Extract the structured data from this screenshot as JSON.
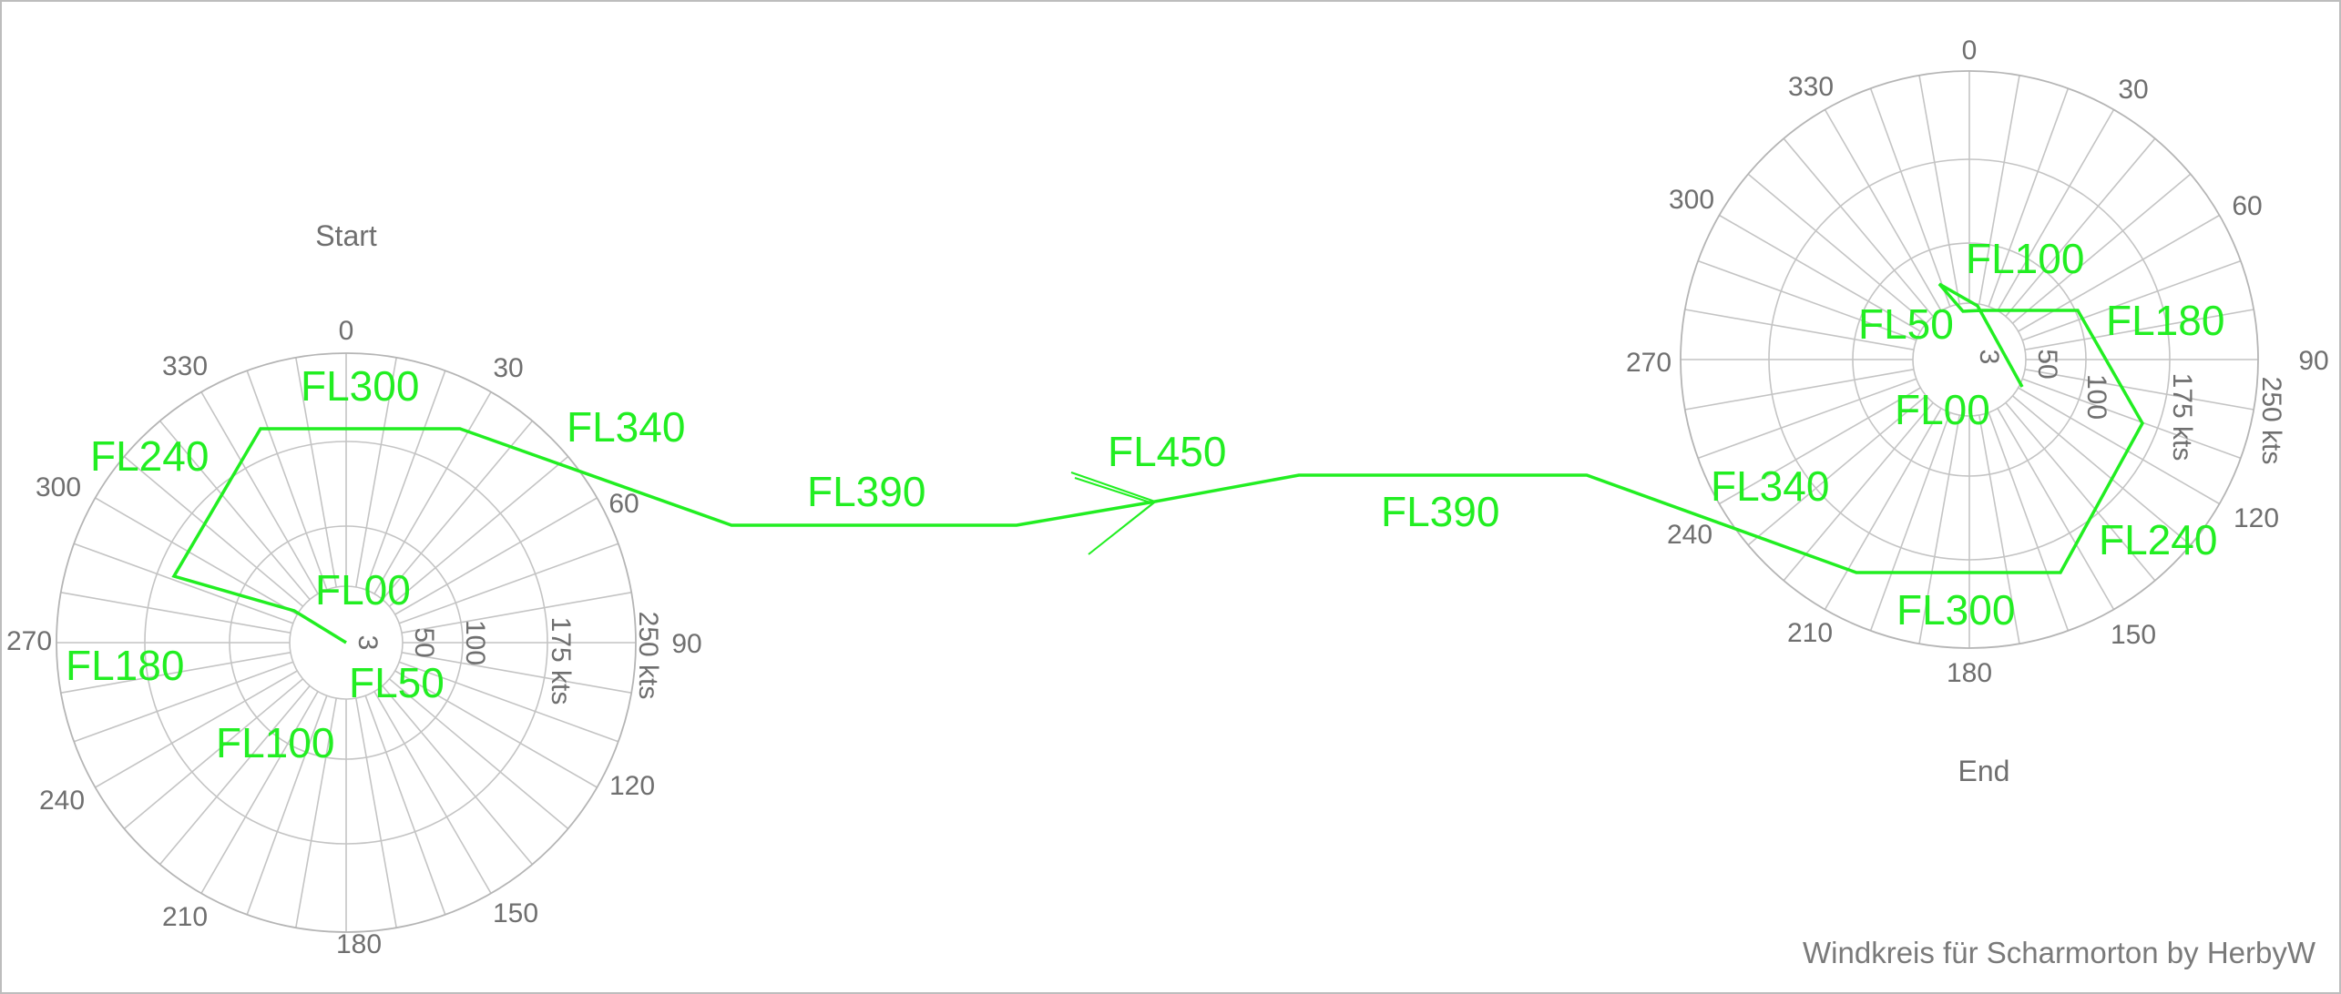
{
  "start_title": "Start",
  "end_title": "End",
  "credit": "Windkreis für Scharmorton by HerbyW",
  "angle_labels": [
    "0",
    "30",
    "60",
    "90",
    "120",
    "150",
    "180",
    "210",
    "240",
    "270",
    "300",
    "330"
  ],
  "speed_labels": [
    "3",
    "50",
    "100",
    "175 kts",
    "250 kts"
  ],
  "route_labels": {
    "start": [
      "FL00",
      "FL50",
      "FL100",
      "FL180",
      "FL240",
      "FL300",
      "FL340"
    ],
    "middle": [
      "FL390",
      "FL450",
      "FL390"
    ],
    "end": [
      "FL00",
      "FL50",
      "FL100",
      "FL180",
      "FL240",
      "FL300",
      "FL340"
    ]
  },
  "colors": {
    "route": "#22ee22",
    "grid": "#c4c4c4",
    "text": "#6f6f6f"
  }
}
